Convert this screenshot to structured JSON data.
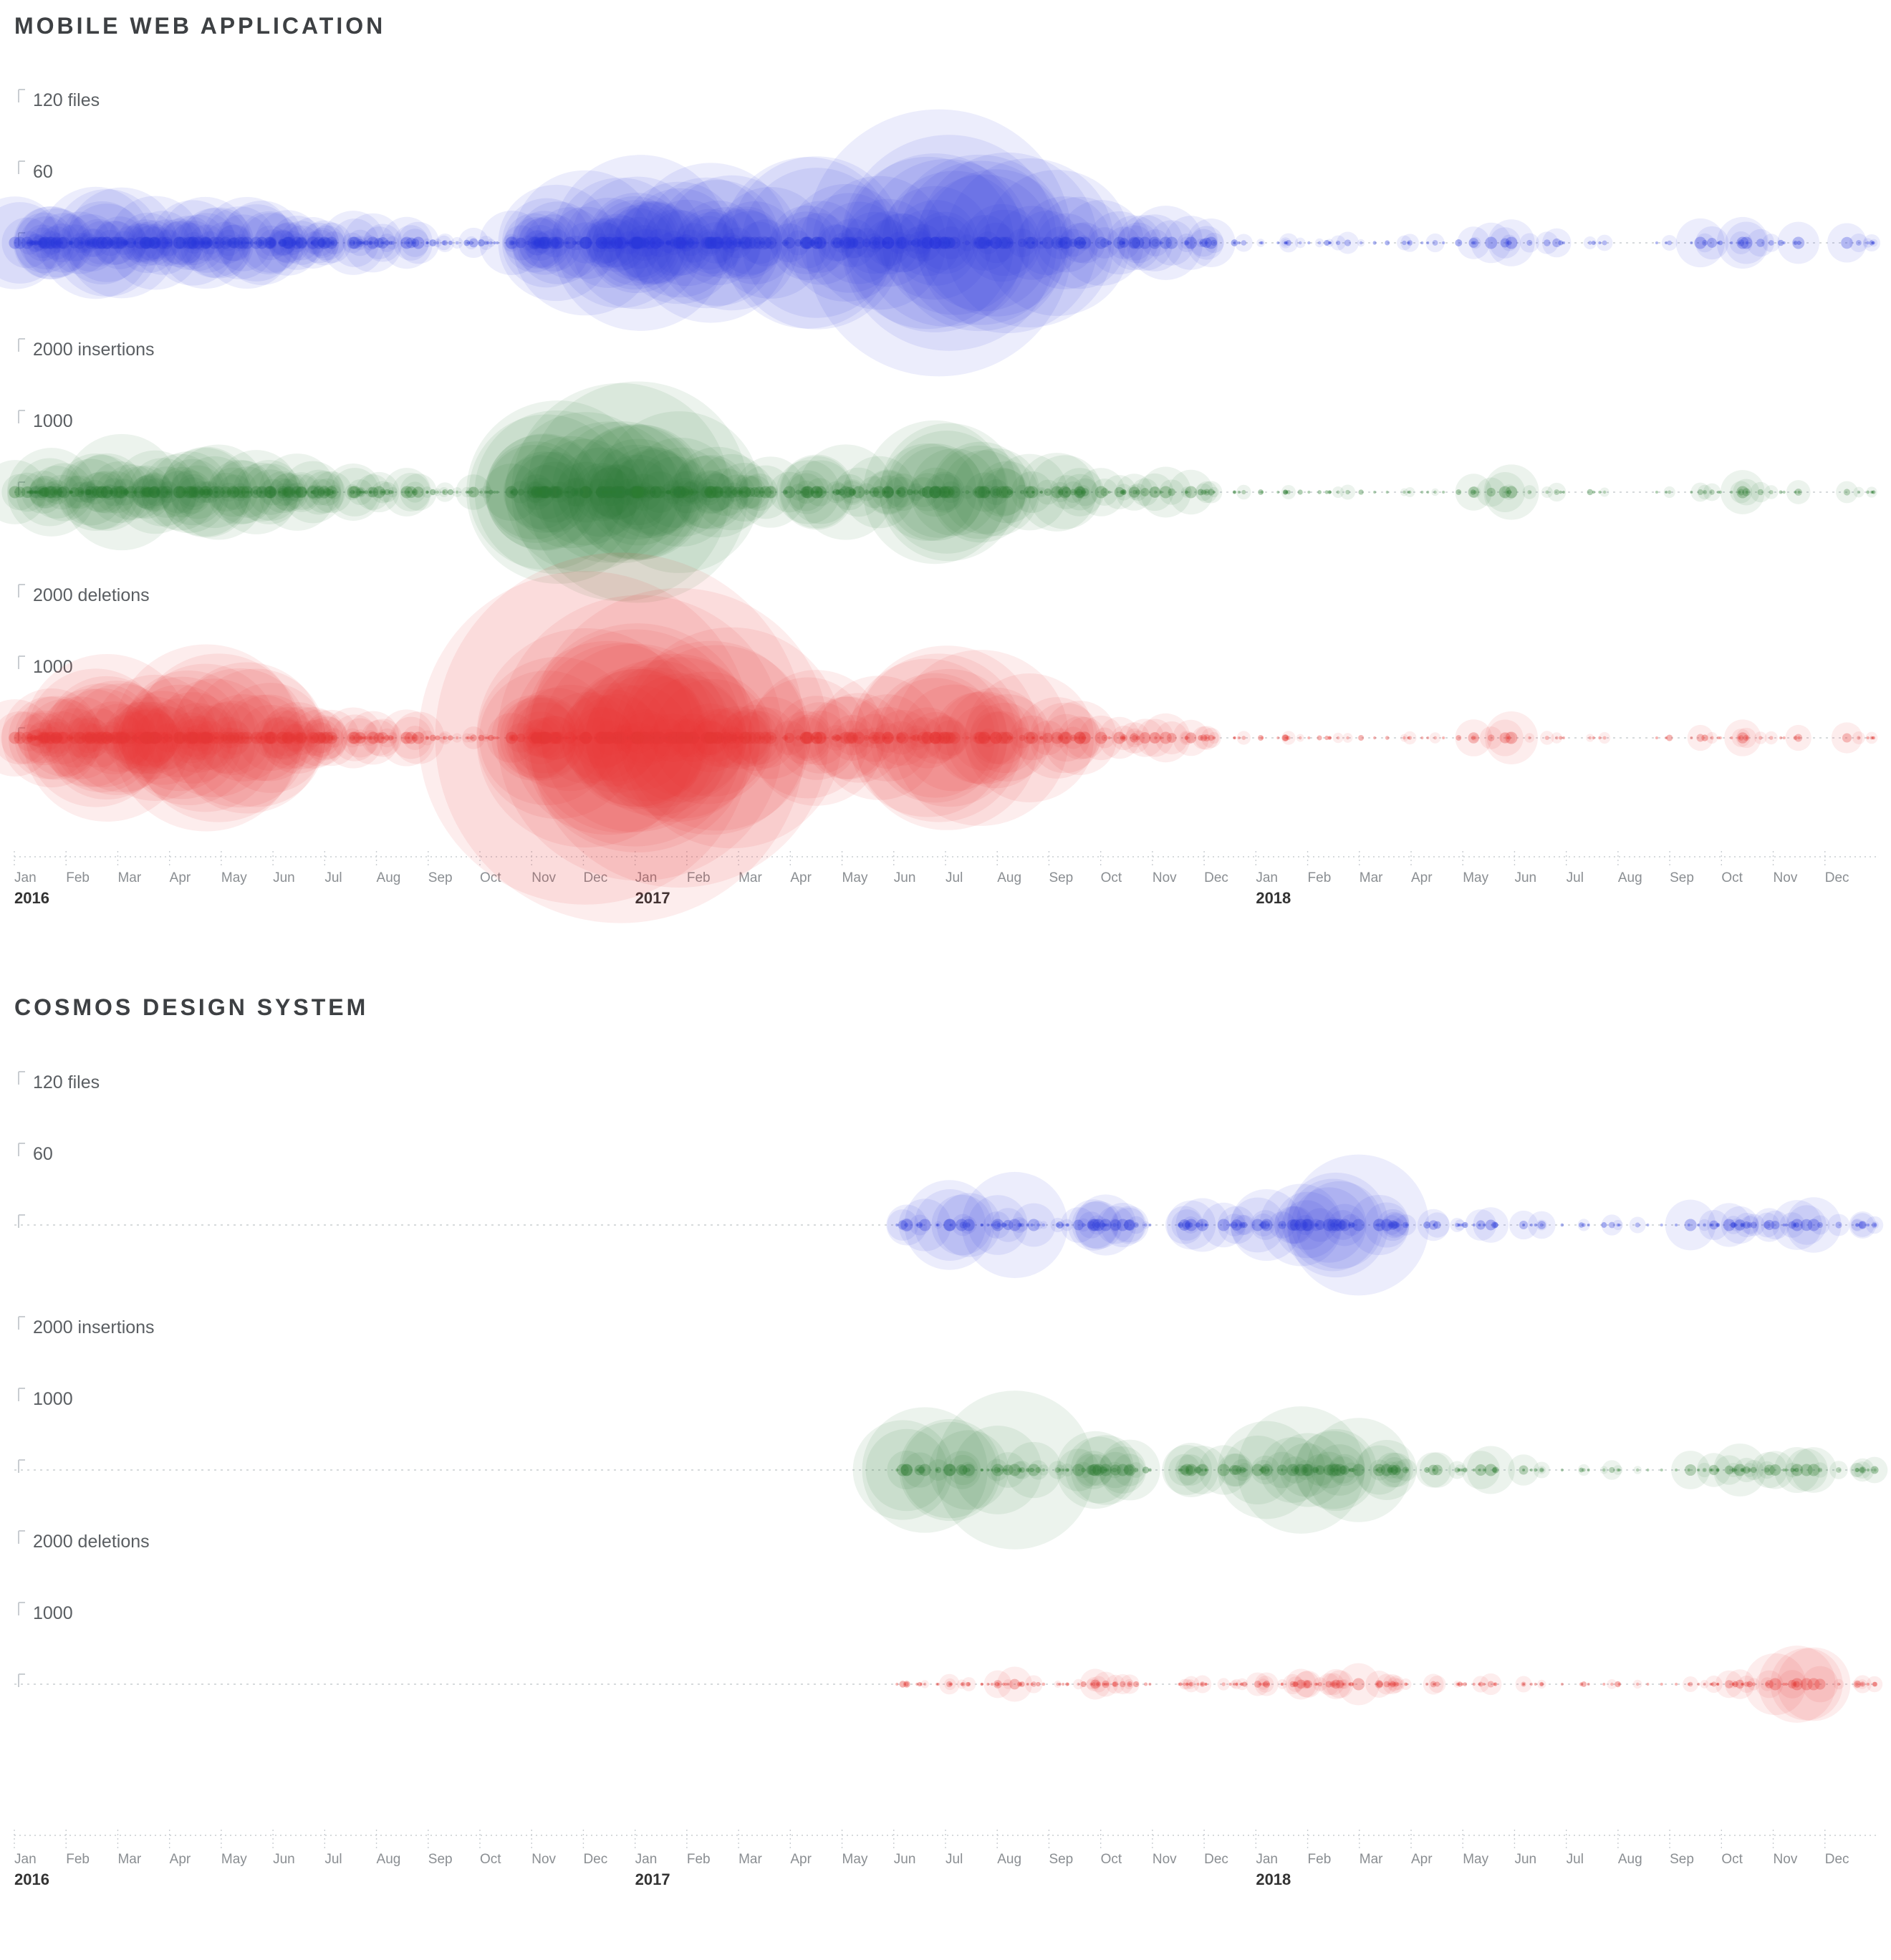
{
  "chart_data": [
    {
      "type": "bubble-timeline",
      "title": "MOBILE WEB APPLICATION",
      "seed": 7,
      "x_axis": {
        "start": "2016-01",
        "end": "2018-12"
      },
      "rows": [
        {
          "name": "files",
          "top_label": "120 files",
          "mid_label": "60",
          "max": 120,
          "mid": 60,
          "color": "#2b3cdb"
        },
        {
          "name": "insertions",
          "top_label": "2000 insertions",
          "mid_label": "1000",
          "max": 2000,
          "mid": 1000,
          "color": "#2e7d32"
        },
        {
          "name": "deletions",
          "top_label": "2000 deletions",
          "mid_label": "1000",
          "max": 2000,
          "mid": 1000,
          "color": "#e53935"
        }
      ],
      "monthly": {
        "commits": [
          30,
          32,
          32,
          30,
          26,
          24,
          20,
          16,
          10,
          12,
          26,
          30,
          32,
          26,
          18,
          20,
          18,
          18,
          16,
          14,
          14,
          12,
          10,
          8,
          8,
          7,
          6,
          5,
          8,
          5,
          4,
          3,
          6,
          8,
          5,
          6
        ],
        "files_peak": [
          45,
          50,
          55,
          50,
          45,
          40,
          35,
          30,
          20,
          35,
          60,
          80,
          85,
          75,
          50,
          90,
          80,
          120,
          115,
          95,
          70,
          50,
          40,
          25,
          15,
          12,
          10,
          10,
          35,
          15,
          10,
          8,
          25,
          30,
          20,
          28
        ],
        "insertions_peak": [
          600,
          700,
          900,
          800,
          700,
          600,
          500,
          400,
          300,
          500,
          1600,
          1900,
          1700,
          900,
          600,
          800,
          700,
          1200,
          1100,
          900,
          800,
          500,
          400,
          250,
          150,
          120,
          100,
          100,
          600,
          150,
          100,
          80,
          250,
          350,
          200,
          250
        ],
        "deletions_peak": [
          800,
          1300,
          1400,
          1500,
          1200,
          800,
          600,
          500,
          300,
          400,
          1200,
          2800,
          2600,
          1500,
          700,
          1200,
          1000,
          1500,
          1400,
          1200,
          900,
          500,
          400,
          250,
          150,
          120,
          100,
          100,
          500,
          150,
          100,
          80,
          200,
          300,
          250,
          250
        ]
      }
    },
    {
      "type": "bubble-timeline",
      "title": "COSMOS DESIGN SYSTEM",
      "seed": 42,
      "x_axis": {
        "start": "2016-01",
        "end": "2018-12"
      },
      "rows": [
        {
          "name": "files",
          "top_label": "120 files",
          "mid_label": "60",
          "max": 120,
          "mid": 60,
          "color": "#2b3cdb"
        },
        {
          "name": "insertions",
          "top_label": "2000 insertions",
          "mid_label": "1000",
          "max": 2000,
          "mid": 1000,
          "color": "#2e7d32"
        },
        {
          "name": "deletions",
          "top_label": "2000 deletions",
          "mid_label": "1000",
          "max": 2000,
          "mid": 1000,
          "color": "#e53935"
        }
      ],
      "monthly": {
        "commits": [
          0,
          0,
          0,
          0,
          0,
          0,
          0,
          0,
          0,
          0,
          0,
          0,
          0,
          0,
          0,
          0,
          0,
          10,
          12,
          14,
          12,
          12,
          10,
          10,
          14,
          16,
          12,
          8,
          8,
          7,
          6,
          4,
          10,
          12,
          10,
          8
        ],
        "files_peak": [
          0,
          0,
          0,
          0,
          0,
          0,
          0,
          0,
          0,
          0,
          0,
          0,
          0,
          0,
          0,
          0,
          0,
          25,
          45,
          60,
          35,
          30,
          25,
          20,
          45,
          60,
          30,
          20,
          18,
          15,
          12,
          8,
          25,
          30,
          35,
          20
        ],
        "insertions_peak": [
          0,
          0,
          0,
          0,
          0,
          0,
          0,
          0,
          0,
          0,
          0,
          0,
          0,
          0,
          0,
          0,
          0,
          1100,
          800,
          1300,
          700,
          600,
          500,
          400,
          900,
          800,
          500,
          300,
          350,
          250,
          200,
          120,
          350,
          400,
          500,
          300
        ],
        "deletions_peak": [
          0,
          0,
          0,
          0,
          0,
          0,
          0,
          0,
          0,
          0,
          0,
          0,
          0,
          0,
          0,
          0,
          0,
          100,
          150,
          400,
          250,
          200,
          150,
          150,
          350,
          300,
          250,
          150,
          200,
          120,
          100,
          80,
          200,
          250,
          900,
          200
        ]
      }
    }
  ],
  "timeline": {
    "month_labels": [
      "Jan",
      "Feb",
      "Mar",
      "Apr",
      "May",
      "Jun",
      "Jul",
      "Aug",
      "Sep",
      "Oct",
      "Nov",
      "Dec"
    ],
    "years": [
      {
        "label": "2016",
        "month_index": 0
      },
      {
        "label": "2017",
        "month_index": 12
      },
      {
        "label": "2018",
        "month_index": 24
      }
    ]
  }
}
